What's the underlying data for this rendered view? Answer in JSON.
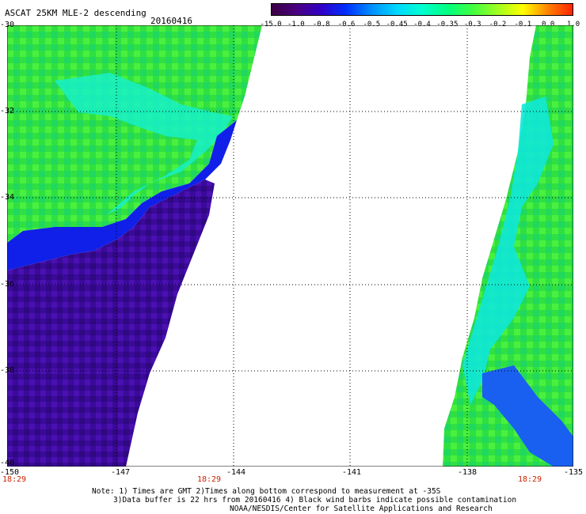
{
  "header": {
    "title": "ASCAT 25KM MLE-2 descending",
    "date": "20160416"
  },
  "colorbar": {
    "labels": [
      "-15.0",
      "-1.0",
      "-0.8",
      "-0.6",
      "-0.5",
      "-0.45",
      "-0.4",
      "-0.35",
      "-0.3",
      "-0.2",
      "-0.1",
      "0.0",
      "1.0"
    ],
    "colors": [
      "#3a0040",
      "#4a0080",
      "#3000c8",
      "#0030ff",
      "#0090ff",
      "#00d8ff",
      "#00ffd0",
      "#00ff80",
      "#40ff40",
      "#a0ff20",
      "#ffff00",
      "#ff8000",
      "#ff2000"
    ]
  },
  "axes": {
    "lat_labels": [
      "-30",
      "-32",
      "-34",
      "-36",
      "-38",
      "-40"
    ],
    "lon_labels": [
      "-150",
      "-147",
      "-144",
      "-141",
      "-138",
      "-135"
    ],
    "time_labels": [
      "18:29",
      "18:29",
      "18:29"
    ]
  },
  "notes": {
    "line1": "Note: 1) Times are GMT 2)Times along bottom correspond to measurement at -35S",
    "line2": "3)Data buffer is 22 hrs from 20160416 4) Black wind barbs indicate possible contamination",
    "line3": "NOAA/NESDIS/Center for Satellite Applications and Research"
  }
}
